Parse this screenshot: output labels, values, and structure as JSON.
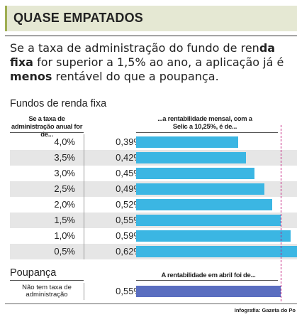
{
  "title": "QUASE EMPATADOS",
  "intro": {
    "part1": "Se a taxa de administração do fundo de ren",
    "part2": "da fixa",
    "part3": " for superior a 1,5% ao ano, a aplicação já é ",
    "part4": "menos",
    "part5": " rentável do que a poupança."
  },
  "colors": {
    "fund_bar": "#3bb6e3",
    "poupanca_bar": "#5a6ec0",
    "reference_line": "#c2187a",
    "title_bg": "#e5e8d3",
    "title_accent": "#9fae52"
  },
  "chart_data": [
    {
      "type": "bar",
      "title": "Fundos de renda fixa",
      "col1_header": "Se a taxa de administração anual for de...",
      "col2_header": "...a rentabilidade mensal, com a Selic a 10,25%, é de...",
      "categories": [
        "4,0%",
        "3,5%",
        "3,0%",
        "2,5%",
        "2,0%",
        "1,5%",
        "1,0%",
        "0,5%"
      ],
      "value_labels": [
        "0,39%",
        "0,42%",
        "0,45%",
        "0,49%",
        "0,52%",
        "0,55%",
        "0,59%",
        "0,62%"
      ],
      "values": [
        0.39,
        0.42,
        0.45,
        0.49,
        0.52,
        0.55,
        0.59,
        0.62
      ],
      "reference_value": 0.55
    },
    {
      "type": "bar",
      "title": "Poupança",
      "col2_header": "A rentabilidade em abril foi de...",
      "categories": [
        "Não tem taxa de administração"
      ],
      "value_labels": [
        "0,55%"
      ],
      "values": [
        0.55
      ]
    }
  ],
  "credit": "Infografia: Gazeta do Po"
}
